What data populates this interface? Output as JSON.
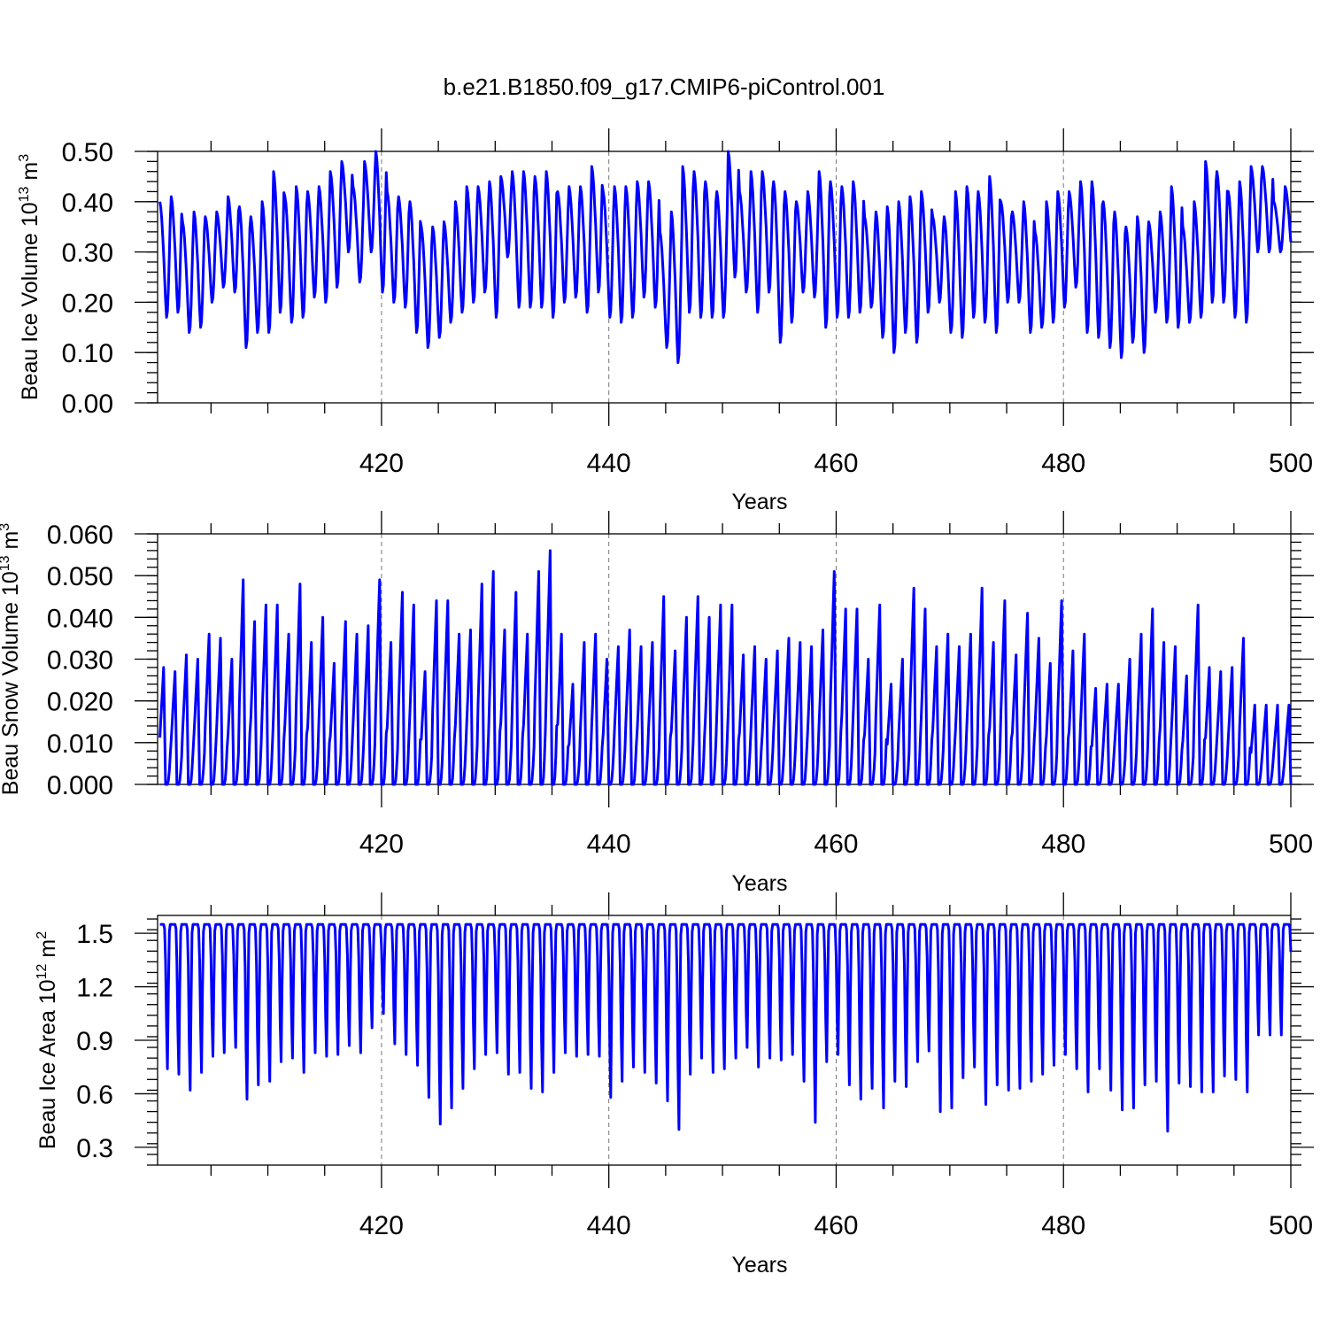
{
  "figure": {
    "title": "b.e21.B1850.f09_g17.CMIP6-piControl.001"
  },
  "chart_data": [
    {
      "type": "line",
      "id": "ice-volume",
      "xlabel": "Years",
      "ylabel": "Beau Ice Volume 10",
      "ylabel_sup1": "13",
      "ylabel_mid": " m",
      "ylabel_sup2": "3",
      "xlim": [
        400.3,
        500
      ],
      "ylim": [
        0,
        0.5
      ],
      "x_ticks": [
        420,
        440,
        460,
        480,
        500
      ],
      "y_ticks": [
        0.0,
        0.1,
        0.2,
        0.3,
        0.4,
        0.5
      ],
      "y_tick_labels": [
        "0.00",
        "0.10",
        "0.20",
        "0.30",
        "0.40",
        "0.50"
      ],
      "grid_x": [
        420,
        440,
        460,
        480
      ],
      "color": "#0000ff",
      "monthly_cycle": [
        1.0,
        0.95,
        0.85,
        0.7,
        0.55,
        0.35,
        0.15,
        0.0,
        0.05,
        0.25,
        0.55,
        0.85
      ],
      "series": [
        {
          "annual_max": [
            0.4,
            0.41,
            0.36,
            0.38,
            0.37,
            0.38,
            0.41,
            0.39,
            0.37,
            0.4,
            0.46,
            0.41,
            0.43,
            0.42,
            0.43,
            0.46,
            0.48,
            0.43,
            0.48,
            0.5,
            0.42,
            0.41,
            0.4,
            0.35,
            0.35,
            0.36,
            0.4,
            0.43,
            0.43,
            0.44,
            0.45,
            0.46,
            0.46,
            0.45,
            0.46,
            0.42,
            0.43,
            0.43,
            0.47,
            0.42,
            0.43,
            0.43,
            0.44,
            0.44,
            0.34,
            0.38,
            0.47,
            0.46,
            0.44,
            0.42,
            0.5,
            0.42,
            0.46,
            0.46,
            0.44,
            0.42,
            0.4,
            0.42,
            0.46,
            0.44,
            0.43,
            0.44,
            0.37,
            0.38,
            0.39,
            0.4,
            0.41,
            0.42,
            0.37,
            0.37,
            0.42,
            0.43,
            0.42,
            0.45,
            0.4,
            0.38,
            0.4,
            0.34,
            0.4,
            0.42,
            0.42,
            0.44,
            0.44,
            0.4,
            0.38,
            0.35,
            0.37,
            0.36,
            0.38,
            0.43,
            0.35,
            0.4,
            0.48,
            0.46,
            0.42,
            0.44,
            0.47,
            0.47,
            0.4,
            0.43
          ],
          "annual_min": [
            0.17,
            0.18,
            0.14,
            0.15,
            0.2,
            0.23,
            0.22,
            0.11,
            0.14,
            0.14,
            0.18,
            0.16,
            0.17,
            0.21,
            0.2,
            0.23,
            0.3,
            0.24,
            0.3,
            0.22,
            0.2,
            0.19,
            0.14,
            0.11,
            0.13,
            0.16,
            0.18,
            0.2,
            0.22,
            0.17,
            0.29,
            0.19,
            0.19,
            0.19,
            0.17,
            0.2,
            0.21,
            0.18,
            0.22,
            0.17,
            0.16,
            0.17,
            0.21,
            0.19,
            0.11,
            0.08,
            0.18,
            0.17,
            0.17,
            0.17,
            0.25,
            0.22,
            0.18,
            0.22,
            0.12,
            0.16,
            0.22,
            0.21,
            0.15,
            0.17,
            0.17,
            0.18,
            0.19,
            0.13,
            0.1,
            0.14,
            0.12,
            0.18,
            0.2,
            0.14,
            0.13,
            0.17,
            0.16,
            0.14,
            0.2,
            0.2,
            0.14,
            0.15,
            0.16,
            0.19,
            0.23,
            0.14,
            0.13,
            0.11,
            0.09,
            0.12,
            0.1,
            0.18,
            0.16,
            0.15,
            0.16,
            0.17,
            0.2,
            0.2,
            0.17,
            0.16,
            0.3,
            0.3,
            0.3,
            0.3
          ]
        }
      ]
    },
    {
      "type": "line",
      "id": "snow-volume",
      "xlabel": "Years",
      "ylabel": "Beau Snow Volume 10",
      "ylabel_sup1": "13",
      "ylabel_mid": " m",
      "ylabel_sup2": "3",
      "xlim": [
        400.3,
        500
      ],
      "ylim": [
        0,
        0.06
      ],
      "x_ticks": [
        420,
        440,
        460,
        480,
        500
      ],
      "y_ticks": [
        0.0,
        0.01,
        0.02,
        0.03,
        0.04,
        0.05,
        0.06
      ],
      "y_tick_labels": [
        "0.000",
        "0.010",
        "0.020",
        "0.030",
        "0.040",
        "0.050",
        "0.060"
      ],
      "grid_x": [
        420,
        440,
        460,
        480
      ],
      "color": "#0000ff",
      "monthly_cycle": [
        0.4,
        0.55,
        0.7,
        0.85,
        1.0,
        0.5,
        0.0,
        0.0,
        0.0,
        0.03,
        0.12,
        0.25
      ],
      "series": [
        {
          "annual_max": [
            0.028,
            0.027,
            0.031,
            0.03,
            0.036,
            0.035,
            0.03,
            0.049,
            0.039,
            0.043,
            0.043,
            0.036,
            0.048,
            0.034,
            0.04,
            0.029,
            0.039,
            0.036,
            0.038,
            0.049,
            0.034,
            0.046,
            0.043,
            0.027,
            0.044,
            0.044,
            0.036,
            0.037,
            0.048,
            0.051,
            0.037,
            0.046,
            0.036,
            0.051,
            0.056,
            0.036,
            0.024,
            0.034,
            0.036,
            0.03,
            0.033,
            0.037,
            0.033,
            0.034,
            0.045,
            0.032,
            0.04,
            0.045,
            0.04,
            0.043,
            0.043,
            0.031,
            0.033,
            0.03,
            0.032,
            0.035,
            0.034,
            0.033,
            0.037,
            0.051,
            0.042,
            0.042,
            0.03,
            0.043,
            0.024,
            0.03,
            0.047,
            0.042,
            0.033,
            0.036,
            0.033,
            0.036,
            0.047,
            0.034,
            0.044,
            0.031,
            0.041,
            0.035,
            0.029,
            0.044,
            0.032,
            0.036,
            0.023,
            0.024,
            0.024,
            0.03,
            0.036,
            0.042,
            0.034,
            0.033,
            0.026,
            0.043,
            0.028,
            0.027,
            0.028,
            0.035,
            0.019,
            0.019,
            0.019,
            0.019
          ]
        }
      ]
    },
    {
      "type": "line",
      "id": "ice-area",
      "xlabel": "Years",
      "ylabel": "Beau Ice Area 10",
      "ylabel_sup1": "12",
      "ylabel_mid": " m",
      "ylabel_sup2": "2",
      "xlim": [
        400.3,
        500
      ],
      "ylim": [
        0.2,
        1.6
      ],
      "x_ticks": [
        420,
        440,
        460,
        480,
        500
      ],
      "y_ticks": [
        0.3,
        0.6,
        0.9,
        1.2,
        1.5
      ],
      "y_tick_labels": [
        "0.3",
        "0.6",
        "0.9",
        "1.2",
        "1.5"
      ],
      "grid_x": [
        420,
        440,
        460,
        480
      ],
      "color": "#0000ff",
      "annual_max": 1.55,
      "monthly_cycle": [
        1.0,
        1.0,
        1.0,
        1.0,
        1.0,
        0.97,
        0.75,
        0.3,
        0.0,
        0.55,
        0.95,
        1.0
      ],
      "series": [
        {
          "annual_min": [
            0.74,
            0.71,
            0.62,
            0.72,
            0.81,
            0.83,
            0.86,
            0.57,
            0.65,
            0.67,
            0.78,
            0.8,
            0.72,
            0.83,
            0.81,
            0.82,
            0.87,
            0.83,
            0.97,
            1.05,
            0.88,
            0.82,
            0.76,
            0.58,
            0.43,
            0.52,
            0.63,
            0.74,
            0.82,
            0.83,
            0.71,
            0.72,
            0.63,
            0.61,
            0.72,
            0.83,
            0.81,
            0.82,
            0.81,
            0.58,
            0.67,
            0.75,
            0.72,
            0.66,
            0.56,
            0.4,
            0.71,
            0.8,
            0.72,
            0.74,
            0.8,
            0.86,
            0.75,
            0.8,
            0.79,
            0.82,
            0.67,
            0.44,
            0.78,
            0.82,
            0.65,
            0.57,
            0.63,
            0.52,
            0.67,
            0.64,
            0.78,
            0.84,
            0.5,
            0.52,
            0.69,
            0.75,
            0.54,
            0.65,
            0.62,
            0.63,
            0.67,
            0.71,
            0.76,
            0.82,
            0.74,
            0.61,
            0.74,
            0.62,
            0.51,
            0.52,
            0.65,
            0.67,
            0.39,
            0.66,
            0.64,
            0.61,
            0.61,
            0.7,
            0.68,
            0.61,
            0.93,
            0.93,
            0.93,
            0.93
          ]
        }
      ]
    }
  ]
}
